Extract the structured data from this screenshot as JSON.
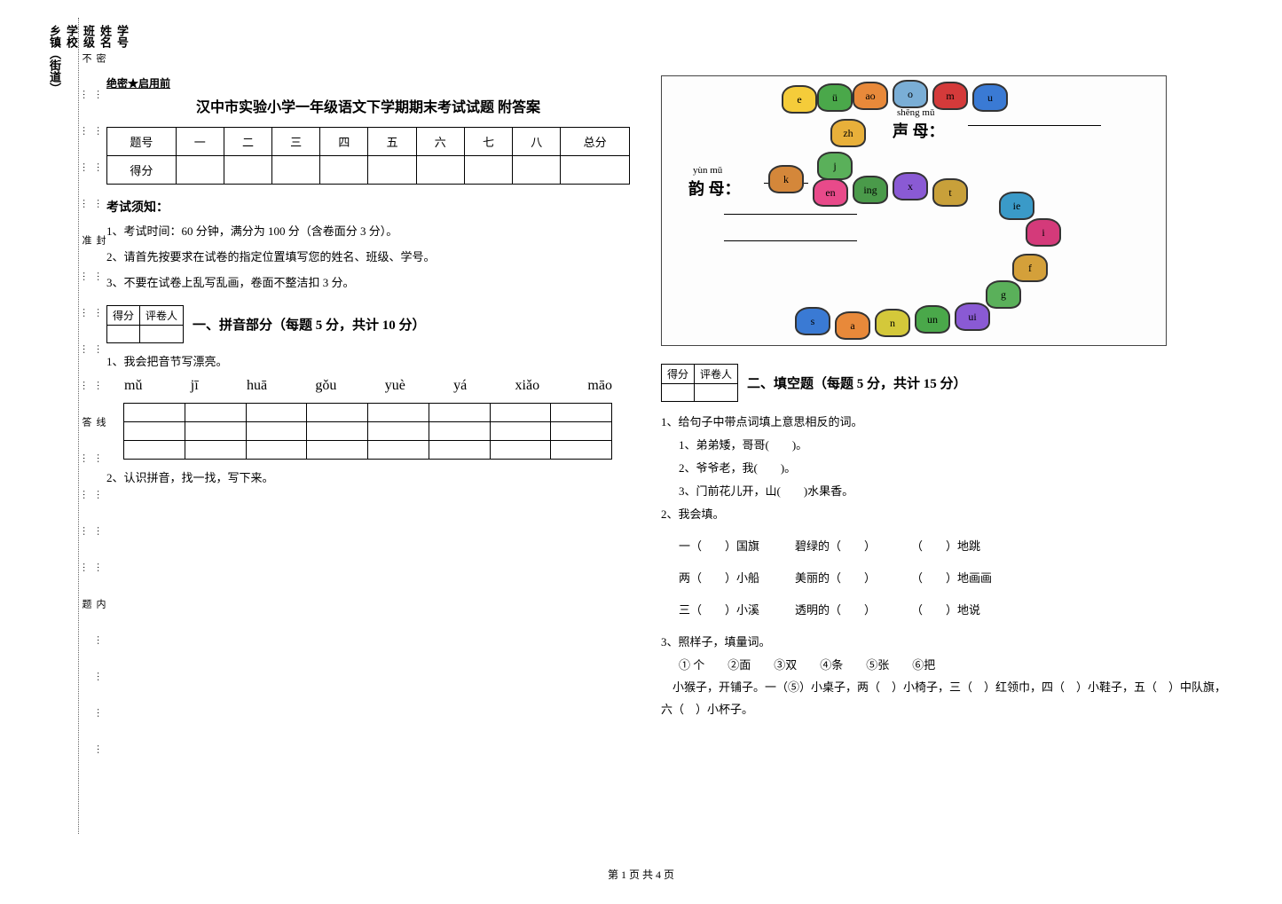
{
  "sidebar": {
    "fields": [
      "乡镇（街道）",
      "学校",
      "班级",
      "姓名",
      "学号"
    ],
    "cutline": "密…………封…………线…………内…………不…………准…………答…………题"
  },
  "header": {
    "confidential": "绝密★启用前",
    "title": "汉中市实验小学一年级语文下学期期末考试试题 附答案"
  },
  "score_table": {
    "header": [
      "题号",
      "一",
      "二",
      "三",
      "四",
      "五",
      "六",
      "七",
      "八",
      "总分"
    ],
    "row_label": "得分"
  },
  "instructions": {
    "title": "考试须知：",
    "items": [
      "1、考试时间：60 分钟，满分为 100 分（含卷面分 3 分）。",
      "2、请首先按要求在试卷的指定位置填写您的姓名、班级、学号。",
      "3、不要在试卷上乱写乱画，卷面不整洁扣 3 分。"
    ]
  },
  "mini_table": {
    "c1": "得分",
    "c2": "评卷人"
  },
  "section1": {
    "title": "一、拼音部分（每题 5 分，共计 10 分）",
    "q1": "1、我会把音节写漂亮。",
    "pinyin": [
      "mǔ",
      "jī",
      "huā",
      "gǒu",
      "yuè",
      "yá",
      "xiǎo",
      "māo"
    ],
    "q2": "2、认识拼音，找一找，写下来。"
  },
  "caterpillar": {
    "shengmu_pinyin": "shēng mǔ",
    "shengmu": "声 母：",
    "yunmu_pinyin": "yùn mǔ",
    "yunmu": "韵 母：",
    "segments": [
      "e",
      "ü",
      "ao",
      "o",
      "m",
      "u",
      "zh",
      "j",
      "k",
      "en",
      "ing",
      "x",
      "t",
      "ie",
      "i",
      "f",
      "g",
      "s",
      "a",
      "n",
      "un",
      "ui"
    ],
    "colors": [
      "#f5cc3a",
      "#4aa84a",
      "#e8893a",
      "#7aaed6",
      "#d43a3a",
      "#3a7ad4",
      "#e8b03a",
      "#5ab05a",
      "#d4873a",
      "#e84a8a",
      "#4a9a4a",
      "#8a5ad4",
      "#c8a03a",
      "#3a9ac8",
      "#d43a7a",
      "#d4a03a",
      "#5ab05a",
      "#3a7ad4",
      "#e8893a",
      "#d4c83a",
      "#4aa84a",
      "#8a5ad4"
    ]
  },
  "section2": {
    "title": "二、填空题（每题 5 分，共计 15 分）",
    "q1_title": "1、给句子中带点词填上意思相反的词。",
    "q1_items": [
      "1、弟弟矮，哥哥(　　)。",
      "2、爷爷老，我(　　)。",
      "3、门前花儿开，山(　　)水果香。"
    ],
    "q2_title": "2、我会填。",
    "q2_rows": [
      [
        "一（　　）国旗",
        "碧绿的（　　）",
        "（　　）地跳"
      ],
      [
        "两（　　）小船",
        "美丽的（　　）",
        "（　　）地画画"
      ],
      [
        "三（　　）小溪",
        "透明的（　　）",
        "（　　）地说"
      ]
    ],
    "q3_title": "3、照样子，填量词。",
    "q3_options": "① 个　　②面　　③双　　④条　　⑤张　　⑥把",
    "q3_text": "　小猴子，开铺子。一（⑤）小桌子，两（　）小椅子，三（　）红领巾，四（　）小鞋子，五（　）中队旗，六（　）小杯子。"
  },
  "footer": "第 1 页 共 4 页"
}
